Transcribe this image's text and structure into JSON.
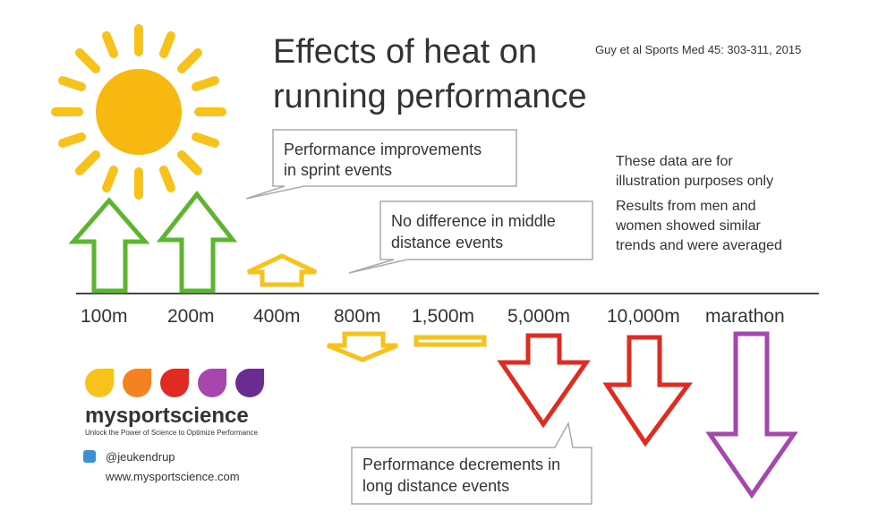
{
  "header": {
    "title_lines": [
      "Effects of heat on",
      "running performance"
    ],
    "citation": "Guy et al Sports Med 45: 303-311, 2015"
  },
  "callouts": [
    {
      "lines": [
        "Performance improvements",
        "in sprint events"
      ]
    },
    {
      "lines": [
        "No difference in middle",
        "distance events"
      ]
    },
    {
      "lines": [
        "Performance decrements in",
        "long distance events"
      ]
    }
  ],
  "notes": [
    {
      "lines": [
        "These data are for",
        "illustration purposes only"
      ]
    },
    {
      "lines": [
        "Results from men and",
        "women showed similar",
        "trends and were averaged"
      ]
    }
  ],
  "events": [
    "100m",
    "200m",
    "400m",
    "800m",
    "1,500m",
    "5,000m",
    "10,000m",
    "marathon"
  ],
  "brand": {
    "name": "mysportscience",
    "tagline": "Unlock the Power of Science to Optimize Performance",
    "twitter": "@jeukendrup",
    "website": "www.mysportscience.com"
  }
}
